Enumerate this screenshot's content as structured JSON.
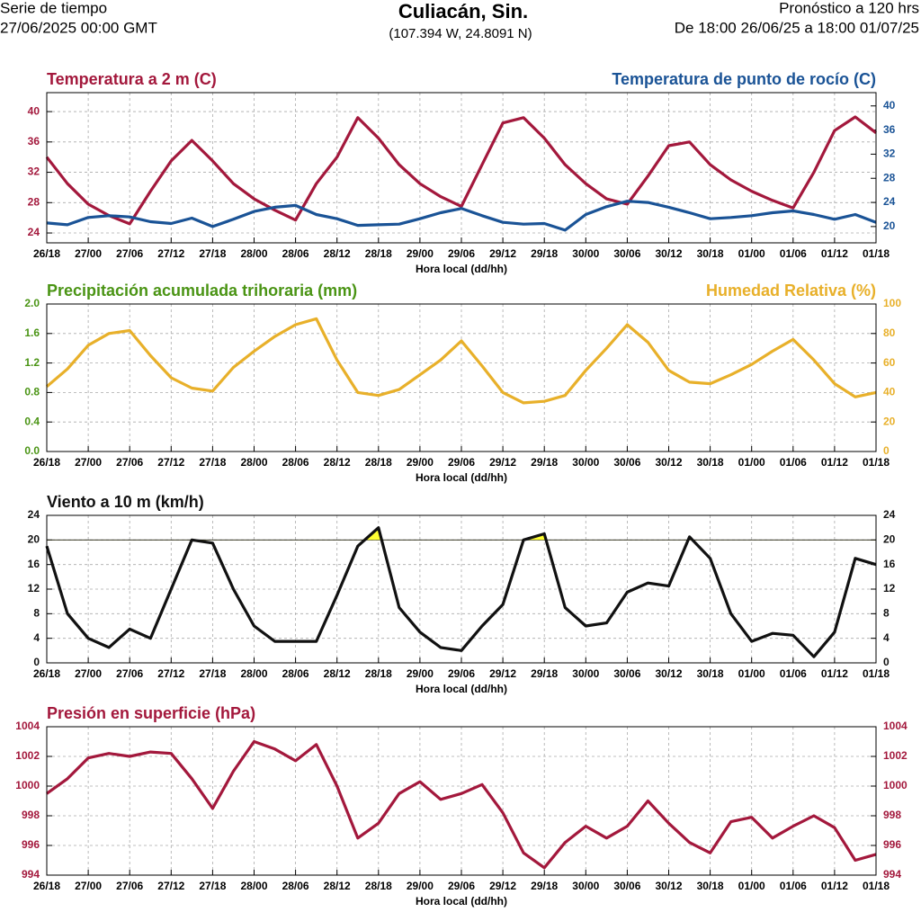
{
  "header": {
    "left": [
      "Serie de tiempo",
      "27/06/2025 00:00 GMT"
    ],
    "title": "Culiacán, Sin.",
    "subtitle": "(107.394 W, 24.8091 N)",
    "right": [
      "Pronóstico a 120 hrs",
      "De 18:00 26/06/25 a 18:00 01/07/25"
    ]
  },
  "chart_data": [
    {
      "type": "line",
      "xlabel": "Hora local (dd/hh)",
      "x": [
        0,
        3,
        6,
        9,
        12,
        15,
        18,
        21,
        24,
        27,
        30,
        33,
        36,
        39,
        42,
        45,
        48,
        51,
        54,
        57,
        60,
        63,
        66,
        69,
        72,
        75,
        78,
        81,
        84,
        87,
        90,
        93,
        96,
        99,
        102,
        105,
        108,
        111,
        114,
        117,
        120
      ],
      "xlim": [
        0,
        120
      ],
      "xticks": [
        {
          "value": 0,
          "label": "26/18"
        },
        {
          "value": 6,
          "label": "27/00"
        },
        {
          "value": 12,
          "label": "27/06"
        },
        {
          "value": 18,
          "label": "27/12"
        },
        {
          "value": 24,
          "label": "27/18"
        },
        {
          "value": 30,
          "label": "28/00"
        },
        {
          "value": 36,
          "label": "28/06"
        },
        {
          "value": 42,
          "label": "28/12"
        },
        {
          "value": 48,
          "label": "28/18"
        },
        {
          "value": 54,
          "label": "29/00"
        },
        {
          "value": 60,
          "label": "29/06"
        },
        {
          "value": 66,
          "label": "29/12"
        },
        {
          "value": 72,
          "label": "29/18"
        },
        {
          "value": 78,
          "label": "30/00"
        },
        {
          "value": 84,
          "label": "30/06"
        },
        {
          "value": 90,
          "label": "30/12"
        },
        {
          "value": 96,
          "label": "30/18"
        },
        {
          "value": 102,
          "label": "01/00"
        },
        {
          "value": 108,
          "label": "01/06"
        },
        {
          "value": 114,
          "label": "01/12"
        },
        {
          "value": 120,
          "label": "01/18"
        }
      ],
      "ylim": [
        22.7,
        42.5
      ],
      "yticks": [
        24,
        28,
        32,
        36,
        40
      ],
      "y2lim": [
        17.3,
        42.2
      ],
      "y2ticks": [
        20,
        24,
        28,
        32,
        36,
        40
      ],
      "grid": true,
      "series": [
        {
          "name": "Temperatura a 2 m (C)",
          "color": "#a3183c",
          "values": [
            34.0,
            30.5,
            27.8,
            26.3,
            25.2,
            29.5,
            33.5,
            36.2,
            33.5,
            30.5,
            28.5,
            27.0,
            25.7,
            30.5,
            34.0,
            39.2,
            36.5,
            33.0,
            30.5,
            28.8,
            27.5,
            33.0,
            38.5,
            39.2,
            36.5,
            33.0,
            30.5,
            28.5,
            27.8,
            31.5,
            35.5,
            36.0,
            33.0,
            31.0,
            29.5,
            28.3,
            27.3,
            32.0,
            37.5,
            39.3,
            37.2
          ]
        },
        {
          "name": "Temperatura de punto de rocío (C)",
          "color": "#1a5396",
          "axis": "y2",
          "values": [
            20.6,
            20.3,
            21.5,
            21.8,
            21.6,
            20.8,
            20.5,
            21.4,
            20.0,
            21.2,
            22.5,
            23.2,
            23.5,
            22.0,
            21.3,
            20.2,
            20.3,
            20.4,
            21.3,
            22.3,
            23.0,
            21.8,
            20.7,
            20.4,
            20.5,
            19.4,
            22.0,
            23.3,
            24.2,
            24.0,
            23.2,
            22.3,
            21.3,
            21.5,
            21.8,
            22.3,
            22.6,
            22.0,
            21.2,
            22.0,
            20.7
          ]
        }
      ]
    },
    {
      "type": "line",
      "xlabel": "Hora local (dd/hh)",
      "ylabel": "Precipitación acumulada trihoraria (mm)",
      "ylabel_color": "#4a9414",
      "x": [
        0,
        3,
        6,
        9,
        12,
        15,
        18,
        21,
        24,
        27,
        30,
        33,
        36,
        39,
        42,
        45,
        48,
        51,
        54,
        57,
        60,
        63,
        66,
        69,
        72,
        75,
        78,
        81,
        84,
        87,
        90,
        93,
        96,
        99,
        102,
        105,
        108,
        111,
        114,
        117,
        120
      ],
      "xlim": [
        0,
        120
      ],
      "xticks": [
        {
          "value": 0,
          "label": "26/18"
        },
        {
          "value": 6,
          "label": "27/00"
        },
        {
          "value": 12,
          "label": "27/06"
        },
        {
          "value": 18,
          "label": "27/12"
        },
        {
          "value": 24,
          "label": "27/18"
        },
        {
          "value": 30,
          "label": "28/00"
        },
        {
          "value": 36,
          "label": "28/06"
        },
        {
          "value": 42,
          "label": "28/12"
        },
        {
          "value": 48,
          "label": "28/18"
        },
        {
          "value": 54,
          "label": "29/00"
        },
        {
          "value": 60,
          "label": "29/06"
        },
        {
          "value": 66,
          "label": "29/12"
        },
        {
          "value": 72,
          "label": "29/18"
        },
        {
          "value": 78,
          "label": "30/00"
        },
        {
          "value": 84,
          "label": "30/06"
        },
        {
          "value": 90,
          "label": "30/12"
        },
        {
          "value": 96,
          "label": "30/18"
        },
        {
          "value": 102,
          "label": "01/00"
        },
        {
          "value": 108,
          "label": "01/06"
        },
        {
          "value": 114,
          "label": "01/12"
        },
        {
          "value": 120,
          "label": "01/18"
        }
      ],
      "ylim": [
        0,
        2
      ],
      "yticks": [
        {
          "value": 0,
          "label": "0.0"
        },
        0.4,
        0.8,
        1.2,
        1.6,
        {
          "value": 2,
          "label": "2.0"
        }
      ],
      "y2lim": [
        0,
        100
      ],
      "y2ticks": [
        0,
        20,
        40,
        60,
        80,
        100
      ],
      "grid": true,
      "series": [
        {
          "name": "Humedad Relativa (%)",
          "color": "#e8b02a",
          "axis": "y2",
          "values": [
            44,
            56,
            72,
            80,
            82,
            65,
            50,
            43,
            41,
            57,
            68,
            78,
            86,
            90,
            62,
            40,
            38,
            42,
            52,
            62,
            75,
            58,
            40,
            33,
            34,
            38,
            55,
            70,
            86,
            74,
            55,
            47,
            46,
            52,
            59,
            68,
            76,
            62,
            46,
            37,
            40
          ]
        }
      ]
    },
    {
      "type": "line",
      "xlabel": "Hora local (dd/hh)",
      "threshold": 20,
      "threshold_color": "#ffff33",
      "x": [
        0,
        3,
        6,
        9,
        12,
        15,
        18,
        21,
        24,
        27,
        30,
        33,
        36,
        39,
        42,
        45,
        48,
        51,
        54,
        57,
        60,
        63,
        66,
        69,
        72,
        75,
        78,
        81,
        84,
        87,
        90,
        93,
        96,
        99,
        102,
        105,
        108,
        111,
        114,
        117,
        120
      ],
      "xlim": [
        0,
        120
      ],
      "xticks": [
        {
          "value": 0,
          "label": "26/18"
        },
        {
          "value": 6,
          "label": "27/00"
        },
        {
          "value": 12,
          "label": "27/06"
        },
        {
          "value": 18,
          "label": "27/12"
        },
        {
          "value": 24,
          "label": "27/18"
        },
        {
          "value": 30,
          "label": "28/00"
        },
        {
          "value": 36,
          "label": "28/06"
        },
        {
          "value": 42,
          "label": "28/12"
        },
        {
          "value": 48,
          "label": "28/18"
        },
        {
          "value": 54,
          "label": "29/00"
        },
        {
          "value": 60,
          "label": "29/06"
        },
        {
          "value": 66,
          "label": "29/12"
        },
        {
          "value": 72,
          "label": "29/18"
        },
        {
          "value": 78,
          "label": "30/00"
        },
        {
          "value": 84,
          "label": "30/06"
        },
        {
          "value": 90,
          "label": "30/12"
        },
        {
          "value": 96,
          "label": "30/18"
        },
        {
          "value": 102,
          "label": "01/00"
        },
        {
          "value": 108,
          "label": "01/06"
        },
        {
          "value": 114,
          "label": "01/12"
        },
        {
          "value": 120,
          "label": "01/18"
        }
      ],
      "ylim": [
        0,
        24
      ],
      "yticks": [
        0,
        4,
        8,
        12,
        16,
        20,
        24
      ],
      "y2lim": [
        0,
        24
      ],
      "y2ticks": [
        0,
        4,
        8,
        12,
        16,
        20,
        24
      ],
      "grid": true,
      "series": [
        {
          "name": "Viento a 10 m (km/h)",
          "color": "#111111",
          "values": [
            19,
            8,
            4,
            2.5,
            5.5,
            4,
            12,
            20,
            19.5,
            12,
            6,
            3.5,
            3.5,
            3.5,
            11,
            19,
            22,
            9,
            5,
            2.5,
            2,
            6,
            9.5,
            20,
            21,
            9,
            6,
            6.5,
            11.5,
            13,
            12.5,
            20.5,
            17,
            8,
            3.5,
            4.8,
            4.5,
            1,
            5,
            17,
            16
          ]
        }
      ]
    },
    {
      "type": "line",
      "xlabel": "Hora local (dd/hh)",
      "x": [
        0,
        3,
        6,
        9,
        12,
        15,
        18,
        21,
        24,
        27,
        30,
        33,
        36,
        39,
        42,
        45,
        48,
        51,
        54,
        57,
        60,
        63,
        66,
        69,
        72,
        75,
        78,
        81,
        84,
        87,
        90,
        93,
        96,
        99,
        102,
        105,
        108,
        111,
        114,
        117,
        120
      ],
      "xlim": [
        0,
        120
      ],
      "xticks": [
        {
          "value": 0,
          "label": "26/18"
        },
        {
          "value": 6,
          "label": "27/00"
        },
        {
          "value": 12,
          "label": "27/06"
        },
        {
          "value": 18,
          "label": "27/12"
        },
        {
          "value": 24,
          "label": "27/18"
        },
        {
          "value": 30,
          "label": "28/00"
        },
        {
          "value": 36,
          "label": "28/06"
        },
        {
          "value": 42,
          "label": "28/12"
        },
        {
          "value": 48,
          "label": "28/18"
        },
        {
          "value": 54,
          "label": "29/00"
        },
        {
          "value": 60,
          "label": "29/06"
        },
        {
          "value": 66,
          "label": "29/12"
        },
        {
          "value": 72,
          "label": "29/18"
        },
        {
          "value": 78,
          "label": "30/00"
        },
        {
          "value": 84,
          "label": "30/06"
        },
        {
          "value": 90,
          "label": "30/12"
        },
        {
          "value": 96,
          "label": "30/18"
        },
        {
          "value": 102,
          "label": "01/00"
        },
        {
          "value": 108,
          "label": "01/06"
        },
        {
          "value": 114,
          "label": "01/12"
        },
        {
          "value": 120,
          "label": "01/18"
        }
      ],
      "ylim": [
        994,
        1004
      ],
      "yticks": [
        994,
        996,
        998,
        1000,
        1002,
        1004
      ],
      "y2lim": [
        994,
        1004
      ],
      "y2ticks": [
        994,
        996,
        998,
        1000,
        1002,
        1004
      ],
      "grid": true,
      "series": [
        {
          "name": "Presión en superficie (hPa)",
          "color": "#a3183c",
          "values": [
            999.5,
            1000.5,
            1001.9,
            1002.2,
            1002,
            1002.3,
            1002.2,
            1000.5,
            998.5,
            1001,
            1003,
            1002.5,
            1001.7,
            1002.8,
            1000,
            996.5,
            997.5,
            999.5,
            1000.3,
            999.1,
            999.5,
            1000.1,
            998.2,
            995.5,
            994.5,
            996.2,
            997.3,
            996.5,
            997.3,
            999,
            997.5,
            996.2,
            995.5,
            997.6,
            997.9,
            996.5,
            997.3,
            998,
            997.2,
            995,
            995.4
          ]
        }
      ]
    }
  ]
}
